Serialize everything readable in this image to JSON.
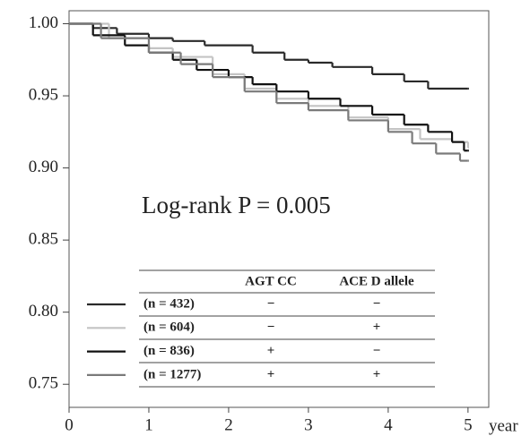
{
  "chart_data": {
    "type": "step",
    "annotation": "Log-rank P = 0.005",
    "x_label": "year",
    "xlim": [
      0,
      5.26
    ],
    "ylim": [
      0.734,
      1.009
    ],
    "xticks": [
      0,
      1,
      2,
      3,
      4,
      5
    ],
    "yticks": [
      {
        "value": 1.0,
        "label": "1.00"
      },
      {
        "value": 0.95,
        "label": "0.95"
      },
      {
        "value": 0.9,
        "label": "0.90"
      },
      {
        "value": 0.85,
        "label": "0.85"
      },
      {
        "value": 0.8,
        "label": "0.80"
      },
      {
        "value": 0.75,
        "label": "0.75"
      }
    ],
    "legend_columns": [
      "AGT CC",
      "ACE D allele"
    ],
    "series": [
      {
        "name": "(n = 432)",
        "color": "#2a2a2a",
        "agt_cc": "−",
        "ace_d": "−",
        "x": [
          0,
          0.3,
          0.6,
          1.0,
          1.3,
          1.7,
          2.3,
          2.7,
          3.0,
          3.3,
          3.8,
          4.2,
          4.5,
          5.0
        ],
        "y": [
          1.0,
          0.997,
          0.993,
          0.99,
          0.988,
          0.985,
          0.98,
          0.975,
          0.973,
          0.97,
          0.965,
          0.96,
          0.955,
          0.955
        ]
      },
      {
        "name": "(n = 604)",
        "color": "#c4c4c4",
        "agt_cc": "−",
        "ace_d": "+",
        "x": [
          0,
          0.5,
          1.0,
          1.3,
          1.8,
          2.2,
          2.6,
          3.0,
          3.5,
          4.0,
          4.4,
          4.8,
          5.0
        ],
        "y": [
          1.0,
          0.99,
          0.983,
          0.977,
          0.965,
          0.955,
          0.948,
          0.943,
          0.935,
          0.927,
          0.92,
          0.918,
          0.914
        ]
      },
      {
        "name": "(n = 836)",
        "color": "#111111",
        "agt_cc": "+",
        "ace_d": "−",
        "x": [
          0,
          0.3,
          0.7,
          1.0,
          1.3,
          1.6,
          2.0,
          2.3,
          2.6,
          3.0,
          3.4,
          3.8,
          4.2,
          4.5,
          4.8,
          4.95,
          5.0
        ],
        "y": [
          1.0,
          0.992,
          0.985,
          0.98,
          0.975,
          0.968,
          0.963,
          0.958,
          0.953,
          0.948,
          0.943,
          0.937,
          0.93,
          0.925,
          0.918,
          0.912,
          0.912
        ]
      },
      {
        "name": "(n = 1277)",
        "color": "#7a7a7a",
        "agt_cc": "+",
        "ace_d": "+",
        "x": [
          0,
          0.4,
          1.0,
          1.4,
          1.8,
          2.2,
          2.6,
          3.0,
          3.5,
          4.0,
          4.3,
          4.6,
          4.9,
          5.0
        ],
        "y": [
          1.0,
          0.99,
          0.98,
          0.972,
          0.963,
          0.953,
          0.945,
          0.94,
          0.933,
          0.925,
          0.917,
          0.91,
          0.905,
          0.905
        ]
      }
    ]
  }
}
